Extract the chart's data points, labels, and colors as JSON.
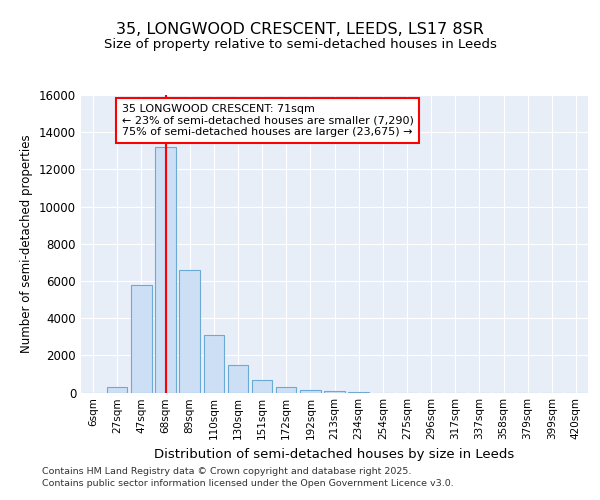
{
  "title1": "35, LONGWOOD CRESCENT, LEEDS, LS17 8SR",
  "title2": "Size of property relative to semi-detached houses in Leeds",
  "xlabel": "Distribution of semi-detached houses by size in Leeds",
  "ylabel": "Number of semi-detached properties",
  "categories": [
    "6sqm",
    "27sqm",
    "47sqm",
    "68sqm",
    "89sqm",
    "110sqm",
    "130sqm",
    "151sqm",
    "172sqm",
    "192sqm",
    "213sqm",
    "234sqm",
    "254sqm",
    "275sqm",
    "296sqm",
    "317sqm",
    "337sqm",
    "358sqm",
    "379sqm",
    "399sqm",
    "420sqm"
  ],
  "values": [
    0,
    300,
    5800,
    13200,
    6600,
    3100,
    1500,
    650,
    300,
    150,
    100,
    50,
    0,
    0,
    0,
    0,
    0,
    0,
    0,
    0,
    0
  ],
  "bar_color": "#ccdff5",
  "bar_edge_color": "#6aaad4",
  "red_line_index": 3,
  "annotation_title": "35 LONGWOOD CRESCENT: 71sqm",
  "annotation_line1": "← 23% of semi-detached houses are smaller (7,290)",
  "annotation_line2": "75% of semi-detached houses are larger (23,675) →",
  "ylim": [
    0,
    16000
  ],
  "yticks": [
    0,
    2000,
    4000,
    6000,
    8000,
    10000,
    12000,
    14000,
    16000
  ],
  "footer1": "Contains HM Land Registry data © Crown copyright and database right 2025.",
  "footer2": "Contains public sector information licensed under the Open Government Licence v3.0.",
  "bg_color": "#ffffff",
  "plot_bg_color": "#e8eef8",
  "grid_color": "#ffffff"
}
